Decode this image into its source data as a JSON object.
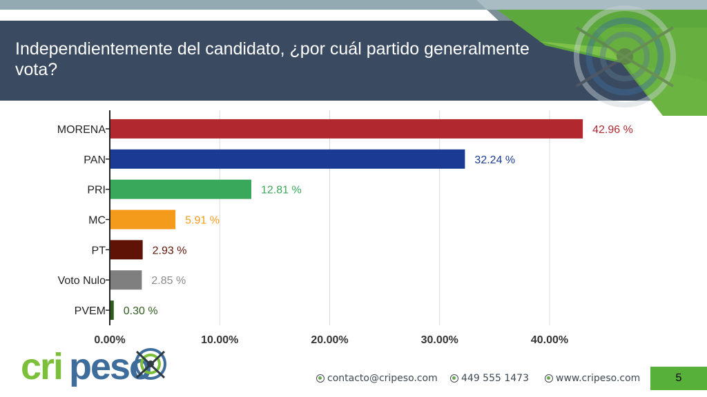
{
  "header": {
    "title": "Independientemente del candidato, ¿por cuál partido generalmente vota?"
  },
  "colors": {
    "title_band": "#3a4a60",
    "accent_green": "#57b03a",
    "top_stripe": "#93aab3"
  },
  "chart_data": {
    "type": "bar",
    "orientation": "horizontal",
    "title": "",
    "xlabel": "",
    "ylabel": "",
    "categories": [
      "MORENA",
      "PAN",
      "PRI",
      "MC",
      "PT",
      "Voto Nulo",
      "PVEM"
    ],
    "values": [
      42.96,
      32.24,
      12.81,
      5.91,
      2.93,
      2.85,
      0.3
    ],
    "value_labels": [
      "42.96 %",
      "32.24 %",
      "12.81 %",
      "5.91 %",
      "2.93 %",
      "2.85 %",
      "0.30 %"
    ],
    "bar_colors": [
      "#b1282f",
      "#1a3a94",
      "#3aa85a",
      "#f59b1b",
      "#5e1306",
      "#7f7f7f",
      "#2e5a1c"
    ],
    "label_colors": [
      "#b1282f",
      "#1a3a94",
      "#3aa85a",
      "#f59b1b",
      "#5e1306",
      "#8a8a8a",
      "#2e5a1c"
    ],
    "xlim": [
      0,
      45
    ],
    "ticks": [
      0,
      10,
      20,
      30,
      40
    ],
    "tick_labels": [
      "0.00%",
      "10.00%",
      "20.00%",
      "30.00%",
      "40.00%"
    ],
    "grid": true,
    "legend": "none"
  },
  "logo": {
    "text": "cripeso"
  },
  "footer": {
    "email": "contacto@cripeso.com",
    "phone": "449 555 1473",
    "website": "www.cripeso.com",
    "page_number": "5",
    "icons": [
      "logo-bullet-icon",
      "logo-bullet-icon",
      "logo-bullet-icon"
    ]
  }
}
